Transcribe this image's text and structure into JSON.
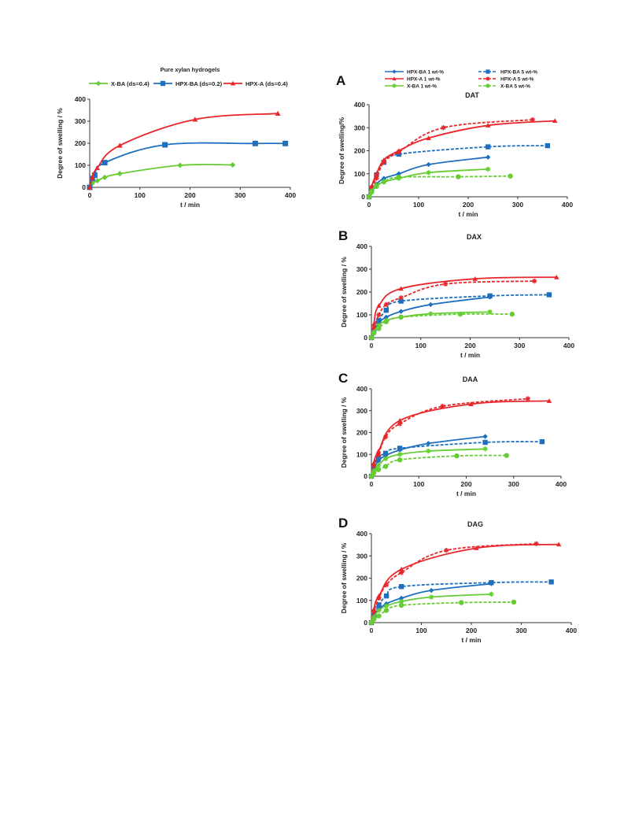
{
  "styles": {
    "colors": {
      "green": "#66cc33",
      "blue": "#1f6fbf",
      "red": "#e8262b",
      "axis": "#333333",
      "grid": "#d9d9d9"
    },
    "series_style": {
      "X-BA (ds=0.4)": {
        "color": "green",
        "marker": "diamond",
        "dash": false
      },
      "HPX-BA (ds=0.2)": {
        "color": "blue",
        "marker": "square",
        "dash": false
      },
      "HPX-A (ds=0.4)": {
        "color": "red",
        "marker": "triangle",
        "dash": false
      },
      "HPX-BA 1 wt-%": {
        "color": "blue",
        "marker": "diamond",
        "dash": false
      },
      "HPX-BA 5 wt-%": {
        "color": "blue",
        "marker": "square",
        "dash": true
      },
      "HPX-A 1 wt-%": {
        "color": "red",
        "marker": "triangle",
        "dash": false
      },
      "HPX-A 5 wt-%": {
        "color": "red",
        "marker": "star",
        "dash": true
      },
      "X-BA 1 wt-%": {
        "color": "green",
        "marker": "star",
        "dash": false
      },
      "X-BA 5 wt-%": {
        "color": "green",
        "marker": "circle",
        "dash": true
      }
    }
  },
  "chart_data": [
    {
      "type": "line",
      "letter": "",
      "title": "Pure xylan hydrogels",
      "xlabel": "t / min",
      "ylabel": "Degree of swelling / %",
      "xlim": [
        0,
        400
      ],
      "ylim": [
        0,
        400
      ],
      "xticks": [
        0,
        100,
        200,
        300,
        400
      ],
      "yticks": [
        0,
        100,
        200,
        300,
        400
      ],
      "legend": "top",
      "series": [
        {
          "name": "X-BA (ds=0.4)",
          "x": [
            0,
            5,
            15,
            30,
            60,
            180,
            285
          ],
          "y": [
            0,
            18,
            30,
            45,
            62,
            100,
            102
          ]
        },
        {
          "name": "HPX-BA (ds=0.2)",
          "x": [
            0,
            5,
            10,
            30,
            150,
            330,
            390
          ],
          "y": [
            0,
            40,
            55,
            112,
            193,
            199,
            199
          ]
        },
        {
          "name": "HPX-A (ds=0.4)",
          "x": [
            0,
            5,
            15,
            60,
            210,
            375
          ],
          "y": [
            0,
            45,
            88,
            190,
            308,
            335
          ]
        }
      ]
    },
    {
      "type": "line",
      "letter": "A",
      "title": "DAT",
      "xlabel": "t / min",
      "ylabel": "Degree of swelling/%",
      "xlim": [
        0,
        400
      ],
      "ylim": [
        0,
        400
      ],
      "xticks": [
        0,
        100,
        200,
        300,
        400
      ],
      "yticks": [
        0,
        100,
        200,
        300,
        400
      ],
      "legend": "top",
      "series": [
        {
          "name": "HPX-BA 1 wt-%",
          "x": [
            0,
            5,
            15,
            30,
            60,
            120,
            240
          ],
          "y": [
            0,
            25,
            55,
            80,
            100,
            140,
            172
          ]
        },
        {
          "name": "HPX-BA 5 wt-%",
          "x": [
            0,
            5,
            15,
            30,
            60,
            240,
            360
          ],
          "y": [
            0,
            30,
            95,
            150,
            185,
            217,
            222
          ]
        },
        {
          "name": "HPX-A 1 wt-%",
          "x": [
            0,
            5,
            15,
            30,
            60,
            120,
            240,
            375
          ],
          "y": [
            0,
            45,
            100,
            160,
            200,
            255,
            310,
            330
          ]
        },
        {
          "name": "HPX-A 5 wt-%",
          "x": [
            0,
            5,
            15,
            30,
            60,
            150,
            330
          ],
          "y": [
            0,
            40,
            80,
            150,
            195,
            300,
            335
          ]
        },
        {
          "name": "X-BA 1 wt-%",
          "x": [
            0,
            5,
            15,
            30,
            60,
            120,
            240
          ],
          "y": [
            0,
            25,
            50,
            65,
            80,
            105,
            120
          ]
        },
        {
          "name": "X-BA 5 wt-%",
          "x": [
            0,
            5,
            15,
            30,
            60,
            180,
            285
          ],
          "y": [
            0,
            20,
            45,
            65,
            85,
            87,
            90
          ]
        }
      ]
    },
    {
      "type": "line",
      "letter": "B",
      "title": "DAX",
      "xlabel": "t / min",
      "ylabel": "Degree of swelling / %",
      "xlim": [
        0,
        400
      ],
      "ylim": [
        0,
        400
      ],
      "xticks": [
        0,
        100,
        200,
        300,
        400
      ],
      "yticks": [
        0,
        100,
        200,
        300,
        400
      ],
      "legend": "none",
      "series": [
        {
          "name": "HPX-BA 1 wt-%",
          "x": [
            0,
            5,
            15,
            30,
            60,
            120,
            240
          ],
          "y": [
            0,
            30,
            65,
            90,
            115,
            145,
            178
          ]
        },
        {
          "name": "HPX-BA 5 wt-%",
          "x": [
            0,
            5,
            15,
            30,
            60,
            240,
            360
          ],
          "y": [
            0,
            30,
            75,
            120,
            160,
            183,
            188
          ]
        },
        {
          "name": "HPX-A 1 wt-%",
          "x": [
            0,
            5,
            15,
            60,
            210,
            375
          ],
          "y": [
            0,
            60,
            140,
            215,
            258,
            265
          ]
        },
        {
          "name": "HPX-A 5 wt-%",
          "x": [
            0,
            5,
            15,
            30,
            60,
            150,
            330
          ],
          "y": [
            0,
            40,
            100,
            145,
            175,
            235,
            248
          ]
        },
        {
          "name": "X-BA 1 wt-%",
          "x": [
            0,
            5,
            15,
            30,
            60,
            120,
            240
          ],
          "y": [
            0,
            25,
            55,
            75,
            90,
            105,
            113
          ]
        },
        {
          "name": "X-BA 5 wt-%",
          "x": [
            0,
            5,
            15,
            30,
            60,
            180,
            285
          ],
          "y": [
            0,
            20,
            40,
            70,
            90,
            103,
            103
          ]
        }
      ]
    },
    {
      "type": "line",
      "letter": "C",
      "title": "DAA",
      "xlabel": "t / min",
      "ylabel": "Degree of swelling / %",
      "xlim": [
        0,
        400
      ],
      "ylim": [
        0,
        400
      ],
      "xticks": [
        0,
        100,
        200,
        300,
        400
      ],
      "yticks": [
        0,
        100,
        200,
        300,
        400
      ],
      "legend": "none",
      "series": [
        {
          "name": "HPX-BA 1 wt-%",
          "x": [
            0,
            5,
            15,
            30,
            60,
            120,
            240
          ],
          "y": [
            0,
            35,
            70,
            95,
            120,
            150,
            182
          ]
        },
        {
          "name": "HPX-BA 5 wt-%",
          "x": [
            0,
            5,
            15,
            30,
            60,
            240,
            360
          ],
          "y": [
            0,
            40,
            85,
            105,
            128,
            155,
            158
          ]
        },
        {
          "name": "HPX-A 1 wt-%",
          "x": [
            0,
            5,
            15,
            60,
            210,
            375
          ],
          "y": [
            0,
            60,
            115,
            255,
            330,
            345
          ]
        },
        {
          "name": "HPX-A 5 wt-%",
          "x": [
            0,
            5,
            15,
            30,
            60,
            150,
            330
          ],
          "y": [
            0,
            50,
            100,
            180,
            240,
            320,
            355
          ]
        },
        {
          "name": "X-BA 1 wt-%",
          "x": [
            0,
            5,
            15,
            30,
            60,
            120,
            240
          ],
          "y": [
            0,
            25,
            50,
            80,
            100,
            115,
            125
          ]
        },
        {
          "name": "X-BA 5 wt-%",
          "x": [
            0,
            5,
            15,
            30,
            60,
            180,
            285
          ],
          "y": [
            0,
            15,
            30,
            45,
            75,
            93,
            95
          ]
        }
      ]
    },
    {
      "type": "line",
      "letter": "D",
      "title": "DAG",
      "xlabel": "t / min",
      "ylabel": "Degree of swelling / %",
      "xlim": [
        0,
        400
      ],
      "ylim": [
        0,
        400
      ],
      "xticks": [
        0,
        100,
        200,
        300,
        400
      ],
      "yticks": [
        0,
        100,
        200,
        300,
        400
      ],
      "legend": "none",
      "series": [
        {
          "name": "HPX-BA 1 wt-%",
          "x": [
            0,
            5,
            15,
            30,
            60,
            120,
            240
          ],
          "y": [
            0,
            30,
            60,
            85,
            110,
            145,
            175
          ]
        },
        {
          "name": "HPX-BA 5 wt-%",
          "x": [
            0,
            5,
            15,
            30,
            60,
            240,
            360
          ],
          "y": [
            0,
            30,
            80,
            120,
            162,
            180,
            183
          ]
        },
        {
          "name": "HPX-A 1 wt-%",
          "x": [
            0,
            5,
            15,
            60,
            210,
            375
          ],
          "y": [
            0,
            60,
            120,
            240,
            335,
            352
          ]
        },
        {
          "name": "HPX-A 5 wt-%",
          "x": [
            0,
            5,
            15,
            30,
            60,
            150,
            330
          ],
          "y": [
            0,
            50,
            110,
            170,
            225,
            325,
            355
          ]
        },
        {
          "name": "X-BA 1 wt-%",
          "x": [
            0,
            5,
            15,
            30,
            60,
            120,
            240
          ],
          "y": [
            0,
            25,
            55,
            75,
            95,
            115,
            128
          ]
        },
        {
          "name": "X-BA 5 wt-%",
          "x": [
            0,
            5,
            15,
            30,
            60,
            180,
            285
          ],
          "y": [
            0,
            15,
            30,
            55,
            78,
            90,
            92
          ]
        }
      ]
    }
  ]
}
